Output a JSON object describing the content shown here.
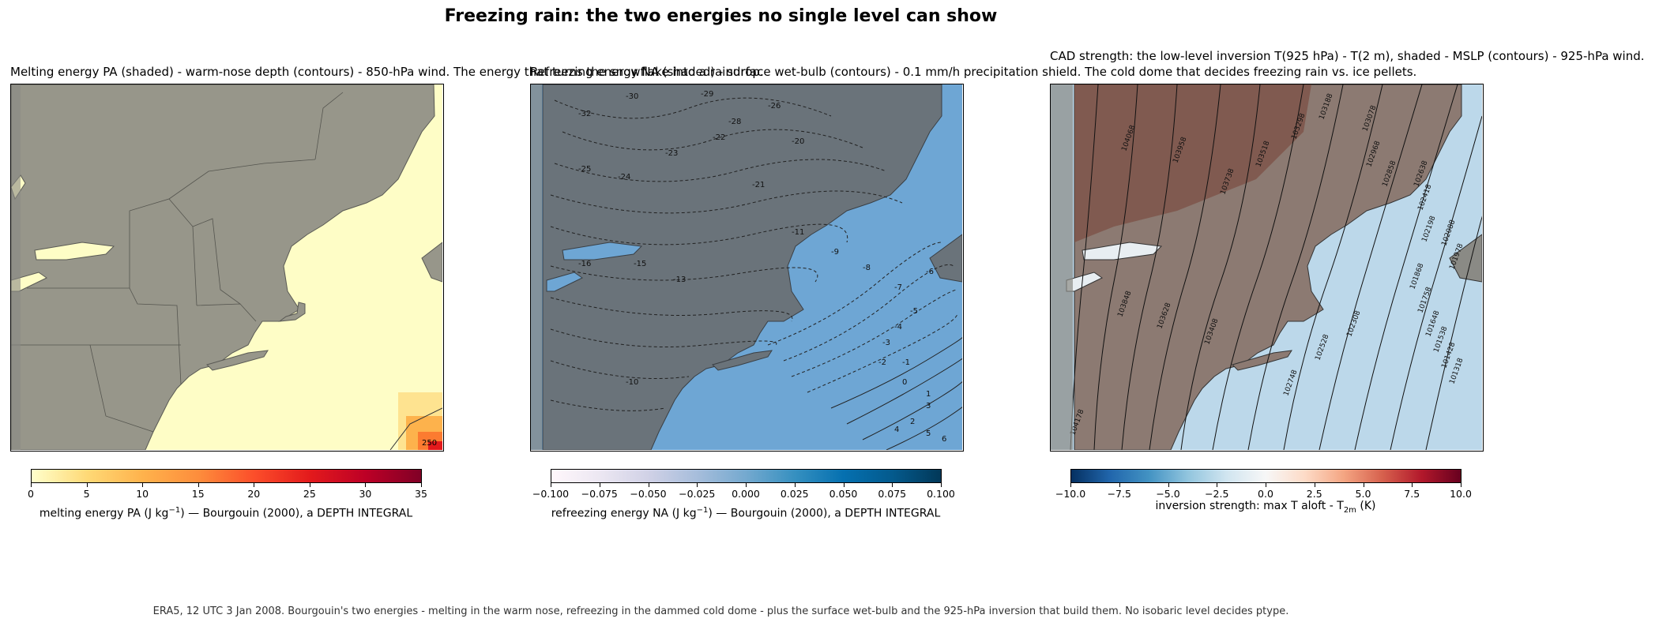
{
  "suptitle": "Freezing rain: the two energies no single level can show",
  "footer": "ERA5, 12 UTC 3 Jan 2008. Bourgouin's two energies - melting in the warm nose, refreezing in the dammed cold dome - plus the surface wet-bulb and the 925-hPa inversion that build them. No isobaric level decides ptype.",
  "colors": {
    "land": "#97968a",
    "ocean_melt": "#fefdc6",
    "ocean_refreeze": "#6ea6d4",
    "land_refreeze": "#6a737a"
  },
  "chart_data": [
    {
      "type": "heatmap",
      "title": "Melting energy PA (shaded) - warm-nose depth (contours) - 850-hPa wind. The energy that turns the snowflake into a raindrop.",
      "colorbar": {
        "label_parts": [
          "melting energy PA (J kg",
          "−1",
          ")  —  Bourgouin (2000), a DEPTH INTEGRAL"
        ],
        "ticks": [
          "0",
          "5",
          "10",
          "15",
          "20",
          "25",
          "30",
          "35"
        ],
        "range": [
          0,
          35
        ],
        "colormap": [
          "#ffffcc",
          "#fed976",
          "#feb24c",
          "#fd8d3c",
          "#fc4e2a",
          "#e31a1c",
          "#bd0026",
          "#800026"
        ]
      },
      "contour_labels": [
        "250"
      ]
    },
    {
      "type": "heatmap",
      "title": "Refreezing energy NA (shaded) - surface wet-bulb (contours) - 0.1 mm/h precipitation shield. The cold dome that decides freezing rain vs. ice pellets.",
      "colorbar": {
        "label_parts": [
          "refreezing energy NA (J kg",
          "−1",
          ")  —  Bourgouin (2000), a DEPTH INTEGRAL"
        ],
        "ticks": [
          "−0.100",
          "−0.075",
          "−0.050",
          "−0.025",
          "0.000",
          "0.025",
          "0.050",
          "0.075",
          "0.100"
        ],
        "range": [
          -0.1,
          0.1
        ],
        "colormap": [
          "#fff7fb",
          "#ece7f2",
          "#d0d1e6",
          "#a6bddb",
          "#74a9cf",
          "#3690c0",
          "#0570b0",
          "#045a8d",
          "#023858"
        ]
      },
      "contour_labels": [
        "-32",
        "-30",
        "-29",
        "-28",
        "-26",
        "-25",
        "-24",
        "-23",
        "-22",
        "-21",
        "-20",
        "-16",
        "-15",
        "-13",
        "-11",
        "-10",
        "-9",
        "-8",
        "-7",
        "-6",
        "-5",
        "-4",
        "-3",
        "-2",
        "-1",
        "0",
        "1",
        "2",
        "3",
        "4",
        "5",
        "6"
      ]
    },
    {
      "type": "heatmap",
      "title": "CAD strength: the low-level inversion T(925 hPa) - T(2 m), shaded - MSLP (contours) - 925-hPa wind.",
      "colorbar": {
        "label_parts": [
          "inversion strength: max T aloft - T",
          "2m",
          " (K)"
        ],
        "ticks": [
          "−10.0",
          "−7.5",
          "−5.0",
          "−2.5",
          "0.0",
          "2.5",
          "5.0",
          "7.5",
          "10.0"
        ],
        "range": [
          -10,
          10
        ],
        "colormap": [
          "#053061",
          "#2166ac",
          "#4393c3",
          "#92c5de",
          "#d1e5f0",
          "#f7f7f7",
          "#fddbc7",
          "#f4a582",
          "#d6604d",
          "#b2182b",
          "#67001f"
        ]
      },
      "contour_labels": [
        "104068",
        "103958",
        "103738",
        "103518",
        "103298",
        "103188",
        "103078",
        "102968",
        "102858",
        "102638",
        "102418",
        "102198",
        "102088",
        "101978",
        "101868",
        "101758",
        "101648",
        "101538",
        "101428",
        "101318",
        "104178",
        "103848",
        "103628",
        "103408",
        "102748",
        "102528",
        "102308"
      ]
    }
  ]
}
